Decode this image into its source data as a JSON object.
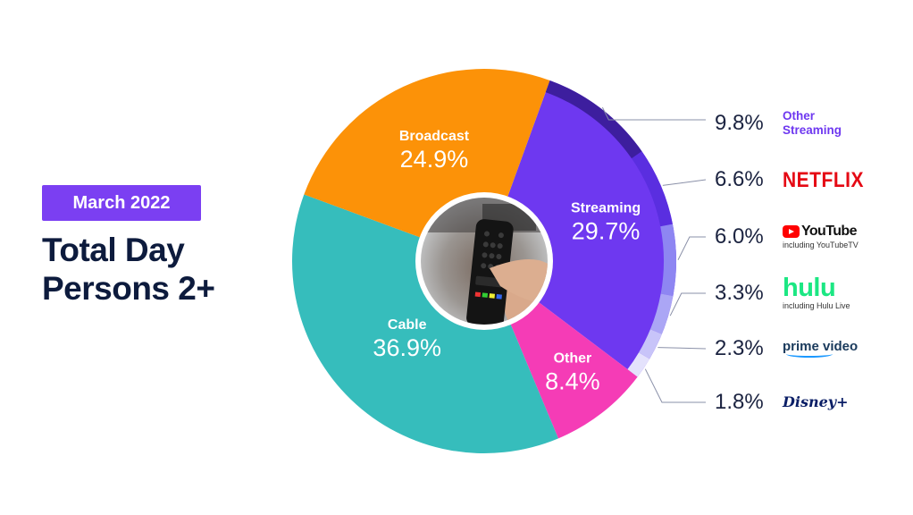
{
  "header": {
    "badge": "March 2022",
    "title_line1": "Total Day",
    "title_line2": "Persons 2+"
  },
  "colors": {
    "badge_bg": "#7b3ff2",
    "title": "#0d1b3d",
    "Broadcast": "#fc9208",
    "Streaming": "#6e38f0",
    "Other": "#f53cb6",
    "Cable": "#36bdbc"
  },
  "legend": [
    {
      "pct": "9.8%",
      "brand": "Other Streaming",
      "brand_line1": "Other",
      "brand_line2": "Streaming",
      "icon": "other-streaming-label",
      "color": "#3d1e9e"
    },
    {
      "pct": "6.6%",
      "brand": "NETFLIX",
      "icon": "netflix-logo",
      "color": "#5a2ee0"
    },
    {
      "pct": "6.0%",
      "brand": "YouTube",
      "sub": "including YouTubeTV",
      "icon": "youtube-logo",
      "color": "#8e86f2"
    },
    {
      "pct": "3.3%",
      "brand": "hulu",
      "sub": "including Hulu Live",
      "icon": "hulu-logo",
      "color": "#aba6f5"
    },
    {
      "pct": "2.3%",
      "brand": "prime video",
      "icon": "prime-video-logo",
      "color": "#c8c4f9"
    },
    {
      "pct": "1.8%",
      "brand": "Disney+",
      "icon": "disney-plus-logo",
      "color": "#e4e2fc"
    }
  ],
  "chart_data": {
    "type": "pie",
    "title": "Total Day Persons 2+",
    "subtitle": "March 2022",
    "slices": [
      {
        "label": "Streaming",
        "value": 29.7,
        "value_label": "29.7%"
      },
      {
        "label": "Other",
        "value": 8.4,
        "value_label": "8.4%"
      },
      {
        "label": "Cable",
        "value": 36.9,
        "value_label": "36.9%"
      },
      {
        "label": "Broadcast",
        "value": 24.9,
        "value_label": "24.9%"
      }
    ],
    "streaming_breakdown": [
      {
        "label": "Other Streaming",
        "value": 9.8
      },
      {
        "label": "Netflix",
        "value": 6.6
      },
      {
        "label": "YouTube",
        "value": 6.0
      },
      {
        "label": "Hulu",
        "value": 3.3
      },
      {
        "label": "Prime Video",
        "value": 2.3
      },
      {
        "label": "Disney+",
        "value": 1.8
      }
    ]
  }
}
